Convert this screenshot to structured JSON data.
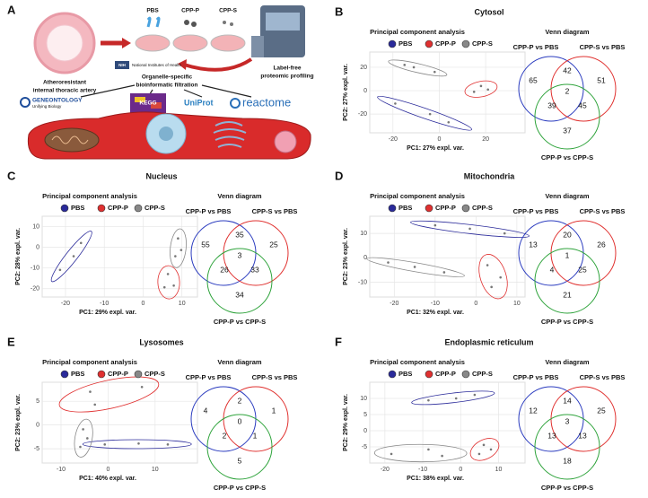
{
  "figure_a": {
    "letter": "A",
    "groups": [
      "PBS",
      "CPP-P",
      "CPP-S"
    ],
    "artery": [
      "Atheroresistant",
      "internal thoracic artery"
    ],
    "profiling": [
      "Label-free",
      "proteomic profiling"
    ],
    "nih_logo": "NIH",
    "nih_name": "National Institutes of Health",
    "filtration": [
      "Organelle-specific",
      "bioinformatic filtration"
    ],
    "databases": [
      "GENEONTOLOGY",
      "KEGG",
      "UniProt",
      "reactome"
    ],
    "go_tagline": "Unifying Biology"
  },
  "panels": [
    {
      "letter": "B",
      "title": "Cytosol"
    },
    {
      "letter": "C",
      "title": "Nucleus"
    },
    {
      "letter": "D",
      "title": "Mitochondria"
    },
    {
      "letter": "E",
      "title": "Lysosomes"
    },
    {
      "letter": "F",
      "title": "Endoplasmic reticulum"
    }
  ],
  "chart_data": [
    {
      "type": "scatter",
      "title": "Principal component analysis",
      "x_label": "PC1: 27% expl. var.",
      "y_label": "PC2: 27% expl. var.",
      "xlim": [
        -30,
        37
      ],
      "xticks": [
        -20,
        0,
        20
      ],
      "ylim": [
        -36,
        33
      ],
      "yticks": [
        -20,
        0,
        20
      ],
      "grid": true,
      "legend": "top",
      "series": [
        {
          "name": "PBS",
          "color": "#2a2a9a",
          "x": [
            -19,
            -4,
            4
          ],
          "y": [
            -11,
            -20,
            -27
          ]
        },
        {
          "name": "CPP-P",
          "color": "#e03030",
          "x": [
            15,
            18,
            21
          ],
          "y": [
            -1,
            4,
            1
          ]
        },
        {
          "name": "CPP-S",
          "color": "#888888",
          "x": [
            -15,
            -11,
            -2
          ],
          "y": [
            22,
            20,
            16
          ]
        }
      ]
    },
    {
      "type": "venn",
      "title": "Venn diagram",
      "sets": [
        {
          "name": "CPP-P vs PBS",
          "color": "#2b3cbf"
        },
        {
          "name": "CPP-S vs PBS",
          "color": "#e0312f"
        },
        {
          "name": "CPP-P vs CPP-S",
          "color": "#2ea33b"
        }
      ],
      "values": [
        65,
        42,
        51,
        39,
        2,
        45,
        37
      ]
    },
    {
      "type": "scatter",
      "title": "Principal component analysis",
      "x_label": "PC1: 29% expl. var.",
      "y_label": "PC2: 28% expl. var.",
      "xlim": [
        -26,
        14
      ],
      "xticks": [
        -20,
        -10,
        0,
        10
      ],
      "ylim": [
        -24,
        15
      ],
      "yticks": [
        -20,
        -10,
        0,
        10
      ],
      "grid": true,
      "legend": "top",
      "series": [
        {
          "name": "PBS",
          "color": "#2a2a9a",
          "x": [
            -21.4,
            -17.9,
            -16
          ],
          "y": [
            -10.9,
            -4.3,
            2.1
          ]
        },
        {
          "name": "CPP-P",
          "color": "#e03030",
          "x": [
            5.5,
            6.4,
            7.9
          ],
          "y": [
            -19.3,
            -12.9,
            -18.5
          ]
        },
        {
          "name": "CPP-S",
          "color": "#888888",
          "x": [
            8.3,
            9,
            9.8
          ],
          "y": [
            -4.3,
            4.3,
            -1.3
          ]
        }
      ]
    },
    {
      "type": "venn",
      "title": "Venn diagram",
      "sets": [
        {
          "name": "CPP-P vs PBS",
          "color": "#2b3cbf"
        },
        {
          "name": "CPP-S vs PBS",
          "color": "#e0312f"
        },
        {
          "name": "CPP-P vs CPP-S",
          "color": "#2ea33b"
        }
      ],
      "values": [
        55,
        35,
        25,
        26,
        3,
        33,
        34
      ]
    },
    {
      "type": "scatter",
      "title": "Principal component analysis",
      "x_label": "PC1: 32% expl. var.",
      "y_label": "PC2: 23% expl. var.",
      "xlim": [
        -26,
        12
      ],
      "xticks": [
        -20,
        -10,
        0,
        10
      ],
      "ylim": [
        -16,
        17
      ],
      "yticks": [
        -10,
        0,
        10
      ],
      "grid": true,
      "legend": "top",
      "series": [
        {
          "name": "PBS",
          "color": "#2a2a9a",
          "x": [
            -10,
            -1.5,
            7
          ],
          "y": [
            13.3,
            11.9,
            10
          ]
        },
        {
          "name": "CPP-P",
          "color": "#e03030",
          "x": [
            2.8,
            3.8,
            6
          ],
          "y": [
            -3,
            -11.9,
            -8
          ]
        },
        {
          "name": "CPP-S",
          "color": "#888888",
          "x": [
            -21.5,
            -15,
            -7.8
          ],
          "y": [
            -1.9,
            -3.7,
            -5.9
          ]
        }
      ]
    },
    {
      "type": "venn",
      "title": "Venn diagram",
      "sets": [
        {
          "name": "CPP-P vs PBS",
          "color": "#2b3cbf"
        },
        {
          "name": "CPP-S vs PBS",
          "color": "#e0312f"
        },
        {
          "name": "CPP-P vs CPP-S",
          "color": "#2ea33b"
        }
      ],
      "values": [
        13,
        20,
        26,
        4,
        1,
        25,
        21
      ]
    },
    {
      "type": "scatter",
      "title": "Principal component analysis",
      "x_label": "PC1: 40% expl. var.",
      "y_label": "PC2: 23% expl. var.",
      "xlim": [
        -14,
        19
      ],
      "xticks": [
        -10,
        0,
        10
      ],
      "ylim": [
        -8,
        9
      ],
      "yticks": [
        -5,
        0,
        5
      ],
      "grid": true,
      "legend": "top",
      "series": [
        {
          "name": "PBS",
          "color": "#2a2a9a",
          "x": [
            -0.7,
            6.5,
            12.7
          ],
          "y": [
            -4.1,
            -3.9,
            -4.1
          ]
        },
        {
          "name": "CPP-P",
          "color": "#e03030",
          "x": [
            -3.8,
            -2.8,
            7.2
          ],
          "y": [
            7,
            4.3,
            8
          ]
        },
        {
          "name": "CPP-S",
          "color": "#888888",
          "x": [
            -5.9,
            -5.3,
            -4.4
          ],
          "y": [
            -4.6,
            -0.9,
            -2.8
          ]
        }
      ]
    },
    {
      "type": "venn",
      "title": "Venn diagram",
      "sets": [
        {
          "name": "CPP-P vs PBS",
          "color": "#2b3cbf"
        },
        {
          "name": "CPP-S vs PBS",
          "color": "#e0312f"
        },
        {
          "name": "CPP-P vs CPP-S",
          "color": "#2ea33b"
        }
      ],
      "values": [
        4,
        2,
        1,
        2,
        0,
        1,
        5
      ]
    },
    {
      "type": "scatter",
      "title": "Principal component analysis",
      "x_label": "PC1: 38% expl. var.",
      "y_label": "PC2: 29% expl. var.",
      "xlim": [
        -24,
        17
      ],
      "xticks": [
        -20,
        -10,
        0,
        10
      ],
      "ylim": [
        -10,
        15
      ],
      "yticks": [
        -5,
        0,
        5,
        10
      ],
      "grid": true,
      "legend": "top",
      "series": [
        {
          "name": "PBS",
          "color": "#2a2a9a",
          "x": [
            -8.5,
            -1.2,
            3.7
          ],
          "y": [
            9.4,
            10,
            11.1
          ]
        },
        {
          "name": "CPP-P",
          "color": "#e03030",
          "x": [
            4.9,
            6.1,
            8
          ],
          "y": [
            -7.2,
            -4.4,
            -5.8
          ]
        },
        {
          "name": "CPP-S",
          "color": "#888888",
          "x": [
            -18.3,
            -8.5,
            -4.9
          ],
          "y": [
            -7.2,
            -5.8,
            -7.8
          ]
        }
      ]
    },
    {
      "type": "venn",
      "title": "Venn diagram",
      "sets": [
        {
          "name": "CPP-P vs PBS",
          "color": "#2b3cbf"
        },
        {
          "name": "CPP-S vs PBS",
          "color": "#e0312f"
        },
        {
          "name": "CPP-P vs CPP-S",
          "color": "#2ea33b"
        }
      ],
      "values": [
        12,
        14,
        25,
        13,
        3,
        13,
        18
      ]
    }
  ]
}
